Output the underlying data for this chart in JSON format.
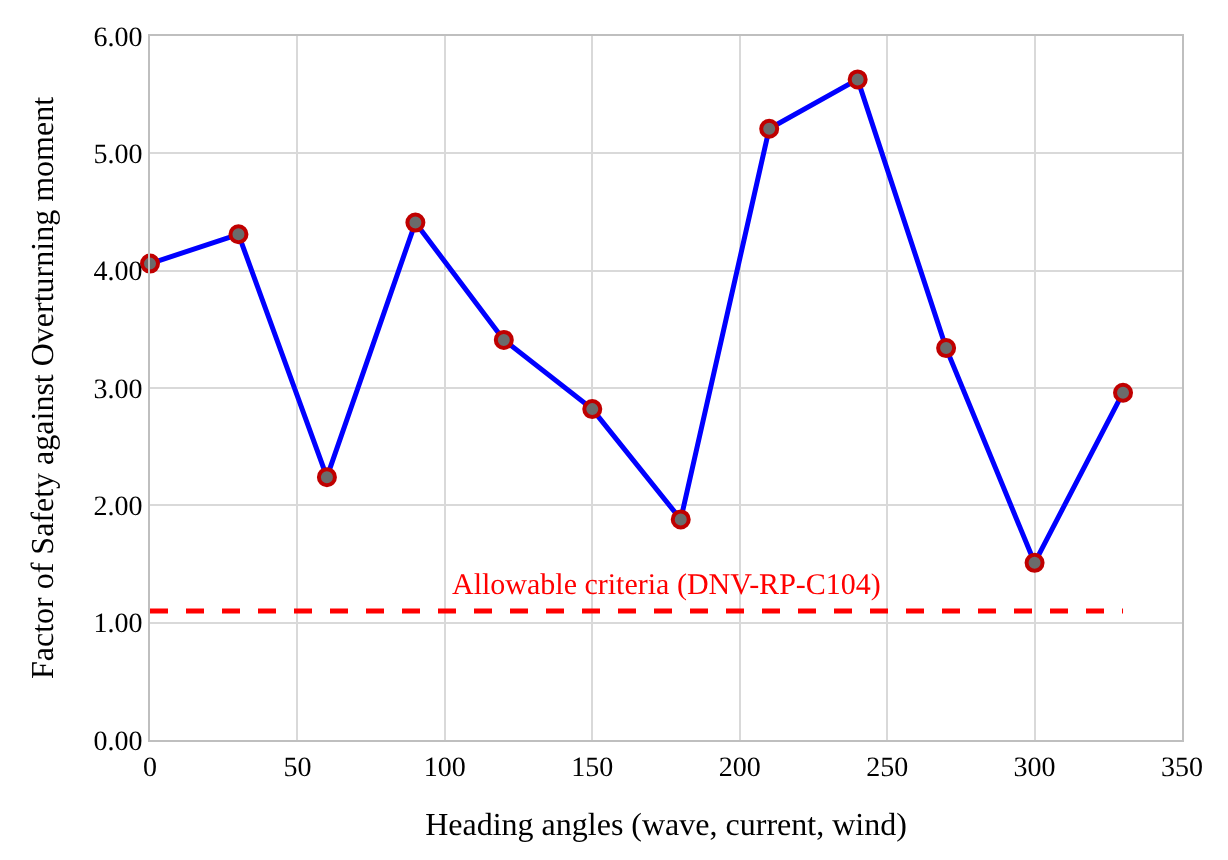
{
  "chart_data": {
    "type": "line",
    "xlabel": "Heading angles (wave, current, wind)",
    "ylabel": "Factor of Safety against Overturning moment",
    "x": [
      0,
      30,
      60,
      90,
      120,
      150,
      180,
      210,
      240,
      270,
      300,
      330
    ],
    "series": [
      {
        "color": "#0000ff",
        "values": [
          4.06,
          4.31,
          2.24,
          4.41,
          3.41,
          2.82,
          1.88,
          5.21,
          5.63,
          3.34,
          1.51,
          2.96
        ]
      }
    ],
    "xlim": [
      0,
      350
    ],
    "xticks": [
      0,
      50,
      100,
      150,
      200,
      250,
      300,
      350
    ],
    "ylim": [
      0,
      6
    ],
    "yticks": [
      {
        "value": 0,
        "label": "0.00"
      },
      {
        "value": 1,
        "label": "1.00"
      },
      {
        "value": 2,
        "label": "2.00"
      },
      {
        "value": 3,
        "label": "3.00"
      },
      {
        "value": 4,
        "label": "4.00"
      },
      {
        "value": 5,
        "label": "5.00"
      },
      {
        "value": 6,
        "label": "6.00"
      }
    ],
    "ref_lines": [
      {
        "axis": "y",
        "value": 1.1,
        "label": "Allowable criteria (DNV-RP-C104)",
        "color": "#ff0000",
        "line_style": "dashed"
      }
    ],
    "grid": true,
    "marker": "circle",
    "line_style": "solid"
  }
}
